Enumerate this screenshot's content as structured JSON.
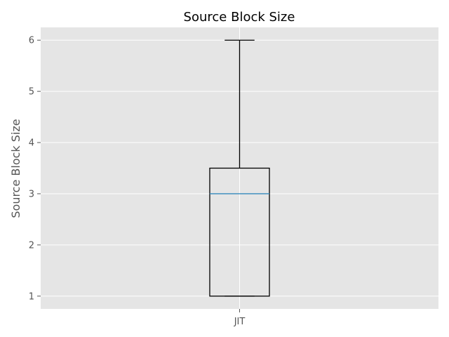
{
  "chart_data": {
    "type": "box",
    "title": "Source Block Size",
    "xlabel": "",
    "ylabel": "Source Block Size",
    "categories": [
      "JIT"
    ],
    "boxes": [
      {
        "category": "JIT",
        "whisker_low": 1,
        "q1": 1,
        "median": 3,
        "q3": 3.5,
        "whisker_high": 6
      }
    ],
    "yticks": [
      1,
      2,
      3,
      4,
      5,
      6
    ],
    "ylim": [
      0.75,
      6.25
    ],
    "grid": true,
    "colors": {
      "plot_background": "#e5e5e5",
      "grid": "#ffffff",
      "box_outline": "#000000",
      "median": "#348abd"
    }
  }
}
